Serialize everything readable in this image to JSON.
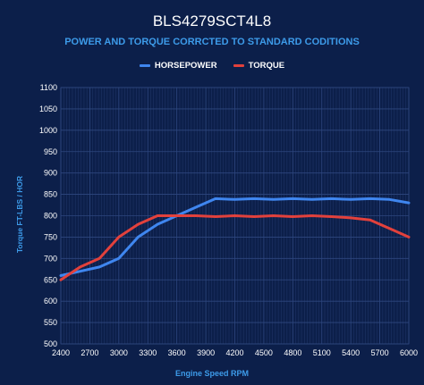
{
  "chart_data": {
    "type": "line",
    "title": "BLS4279SCT4L8",
    "subtitle": "POWER AND TORQUE CORRCTED TO STANDARD CODITIONS",
    "xlabel": "Engine Speed RPM",
    "ylabel": "Torque FT-LBS / HOR",
    "x_ticks": [
      "2400",
      "2700",
      "3000",
      "3300",
      "3600",
      "3900",
      "4200",
      "4500",
      "4800",
      "5100",
      "5400",
      "5700",
      "6000"
    ],
    "y_ticks": [
      "500",
      "550",
      "600",
      "650",
      "700",
      "750",
      "800",
      "850",
      "900",
      "950",
      "1000",
      "1050",
      "1100"
    ],
    "xlim": [
      2400,
      6000
    ],
    "ylim": [
      500,
      1100
    ],
    "grid": true,
    "legend_position": "top-center",
    "series": [
      {
        "name": "HORSEPOWER",
        "color": "#3f86ef",
        "x": [
          2400,
          2600,
          2800,
          3000,
          3200,
          3400,
          3600,
          3800,
          4000,
          4200,
          4400,
          4600,
          4800,
          5000,
          5200,
          5400,
          5600,
          5800,
          6000
        ],
        "y": [
          660,
          670,
          680,
          700,
          750,
          780,
          800,
          820,
          840,
          838,
          840,
          838,
          840,
          838,
          840,
          838,
          840,
          838,
          830
        ]
      },
      {
        "name": "TORQUE",
        "color": "#e2413c",
        "x": [
          2400,
          2600,
          2800,
          3000,
          3200,
          3400,
          3600,
          3800,
          4000,
          4200,
          4400,
          4600,
          4800,
          5000,
          5200,
          5400,
          5600,
          5800,
          6000
        ],
        "y": [
          650,
          680,
          700,
          750,
          780,
          800,
          800,
          800,
          798,
          800,
          798,
          800,
          798,
          800,
          798,
          795,
          790,
          770,
          750
        ]
      }
    ]
  }
}
